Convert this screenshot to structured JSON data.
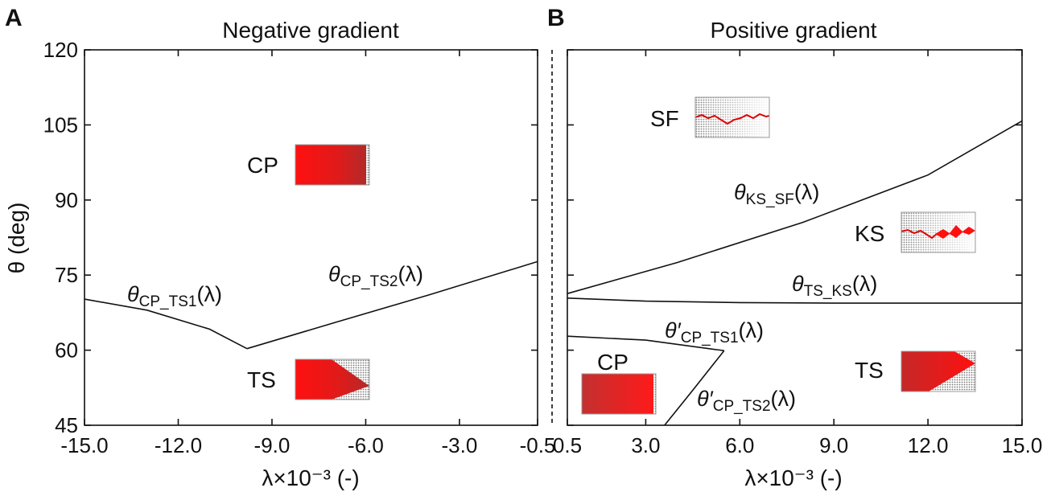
{
  "chart_data": [
    {
      "type": "line",
      "panel": "A",
      "title": "Negative gradient",
      "xlabel": "λ×10⁻³ (-)",
      "ylabel": "θ (deg)",
      "xlim": [
        -15.0,
        -0.5
      ],
      "ylim": [
        45,
        120
      ],
      "xticks": [
        "-15.0",
        "-12.0",
        "-9.0",
        "-6.0",
        "-3.0",
        "-0.5"
      ],
      "yticks": [
        "45",
        "60",
        "75",
        "90",
        "105",
        "120"
      ],
      "series": [
        {
          "name": "θCP_TS1(λ)",
          "x": [
            -15.0,
            -13.0,
            -11.0,
            -9.8
          ],
          "y": [
            70.2,
            68.0,
            64.2,
            60.3
          ]
        },
        {
          "name": "θCP_TS2(λ)",
          "x": [
            -9.8,
            -7.0,
            -4.0,
            -0.5
          ],
          "y": [
            60.3,
            65.5,
            71.0,
            77.7
          ]
        }
      ],
      "annotations": [
        {
          "label": "θCP_TS1(λ)",
          "main": "θ",
          "sub": "CP_TS1",
          "tail": "(λ)"
        },
        {
          "label": "θCP_TS2(λ)",
          "main": "θ",
          "sub": "CP_TS2",
          "tail": "(λ)"
        }
      ],
      "regions": [
        "CP",
        "TS"
      ]
    },
    {
      "type": "line",
      "panel": "B",
      "title": "Positive gradient",
      "xlabel": "λ×10⁻³ (-)",
      "ylabel": "",
      "xlim": [
        0.5,
        15.0
      ],
      "ylim": [
        45,
        120
      ],
      "xticks": [
        "0.5",
        "3.0",
        "6.0",
        "9.0",
        "12.0",
        "15.0"
      ],
      "series": [
        {
          "name": "θKS_SF(λ)",
          "x": [
            0.5,
            4.0,
            8.0,
            12.0,
            15.0
          ],
          "y": [
            71.3,
            77.5,
            85.5,
            95.0,
            105.8
          ]
        },
        {
          "name": "θTS_KS(λ)",
          "x": [
            0.5,
            3.0,
            6.0,
            9.0,
            12.0,
            15.0
          ],
          "y": [
            70.4,
            69.8,
            69.5,
            69.4,
            69.4,
            69.4
          ]
        },
        {
          "name": "θ′CP_TS1(λ)",
          "x": [
            0.5,
            3.0,
            5.5
          ],
          "y": [
            62.8,
            62.0,
            59.9
          ]
        },
        {
          "name": "θ′CP_TS2(λ)",
          "x": [
            5.5,
            4.5,
            3.6
          ],
          "y": [
            59.9,
            52.0,
            45.0
          ]
        }
      ],
      "annotations": [
        {
          "label": "θKS_SF(λ)",
          "main": "θ",
          "sub": "KS_SF",
          "tail": "(λ)"
        },
        {
          "label": "θTS_KS(λ)",
          "main": "θ",
          "sub": "TS_KS",
          "tail": "(λ)"
        },
        {
          "label": "θ′CP_TS1(λ)",
          "main": "θ′",
          "sub": "CP_TS1",
          "tail": "(λ)"
        },
        {
          "label": "θ′CP_TS2(λ)",
          "main": "θ′",
          "sub": "CP_TS2",
          "tail": "(λ)"
        }
      ],
      "regions": [
        "SF",
        "KS",
        "CP",
        "TS"
      ]
    }
  ]
}
